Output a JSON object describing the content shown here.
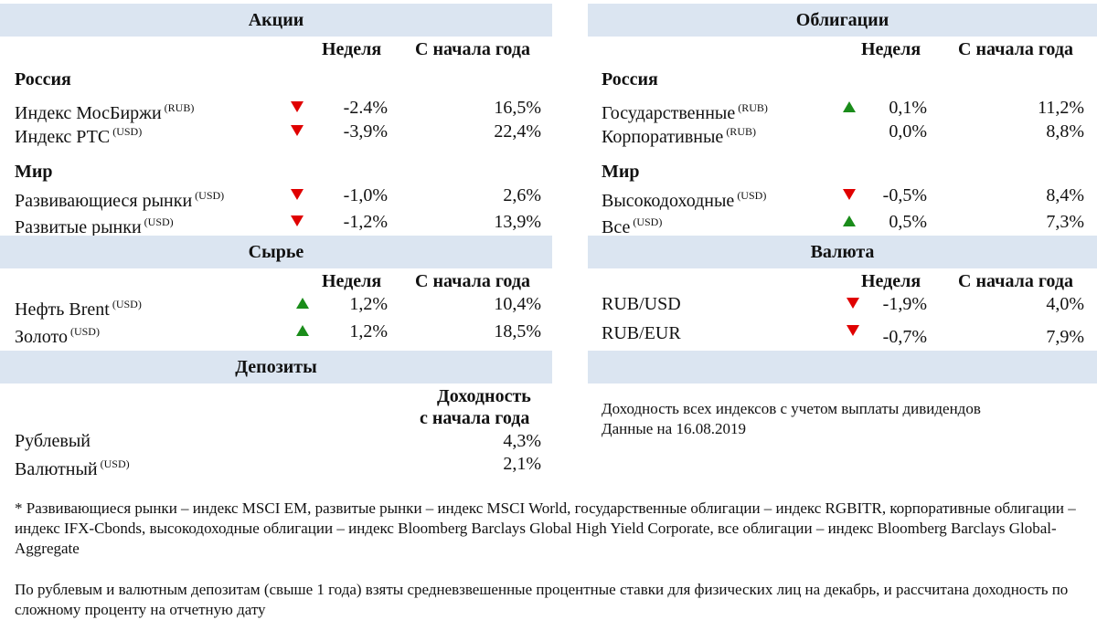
{
  "stocks": {
    "title": "Акции",
    "col_week": "Неделя",
    "col_ytd": "С начала года",
    "russia_label": "Россия",
    "world_label": "Мир",
    "russia": [
      {
        "name": "Индекс МосБиржи",
        "cur": "(RUB)",
        "dir": "down",
        "week": "-2.4%",
        "ytd": "16,5%"
      },
      {
        "name": "Индекс РТС",
        "cur": "(USD)",
        "dir": "down",
        "week": "-3,9%",
        "ytd": "22,4%"
      }
    ],
    "world": [
      {
        "name": "Развивающиеся рынки",
        "cur": "(USD)",
        "dir": "down",
        "week": "-1,0%",
        "ytd": "2,6%"
      },
      {
        "name": "Развитые рынки",
        "cur": "(USD)",
        "dir": "down",
        "week": "-1,2%",
        "ytd": "13,9%"
      }
    ]
  },
  "bonds": {
    "title": "Облигации",
    "col_week": "Неделя",
    "col_ytd": "С начала года",
    "russia_label": "Россия",
    "world_label": "Мир",
    "russia": [
      {
        "name": "Государственные",
        "cur": "(RUB)",
        "dir": "up",
        "week": "0,1%",
        "ytd": "11,2%"
      },
      {
        "name": "Корпоративные",
        "cur": "(RUB)",
        "dir": "none",
        "week": "0,0%",
        "ytd": "8,8%"
      }
    ],
    "world": [
      {
        "name": "Высокодоходные",
        "cur": "(USD)",
        "dir": "down",
        "week": "-0,5%",
        "ytd": "8,4%"
      },
      {
        "name": "Все",
        "cur": "(USD)",
        "dir": "up",
        "week": "0,5%",
        "ytd": "7,3%"
      }
    ]
  },
  "commodities": {
    "title": "Сырье",
    "col_week": "Неделя",
    "col_ytd": "С начала года",
    "rows": [
      {
        "name": "Нефть Brent",
        "cur": "(USD)",
        "dir": "up",
        "week": "1,2%",
        "ytd": "10,4%"
      },
      {
        "name": "Золото",
        "cur": "(USD)",
        "dir": "up",
        "week": "1,2%",
        "ytd": "18,5%"
      }
    ]
  },
  "currency": {
    "title": "Валюта",
    "col_week": "Неделя",
    "col_ytd": "С начала года",
    "rows": [
      {
        "name": "RUB/USD",
        "cur": "",
        "dir": "down",
        "week": "-1,9%",
        "ytd": "4,0%"
      },
      {
        "name": "RUB/EUR",
        "cur": "",
        "dir": "down",
        "week": "-0,7%",
        "ytd": "7,9%"
      }
    ]
  },
  "deposits": {
    "title": "Депозиты",
    "col_yield_line1": "Доходность",
    "col_yield_line2": "с начала года",
    "rows": [
      {
        "name": "Рублевый",
        "cur": "",
        "ytd": "4,3%"
      },
      {
        "name": "Валютный",
        "cur": "(USD)",
        "ytd": "2,1%"
      }
    ]
  },
  "notes": {
    "line1": "Доходность всех индексов с учетом выплаты дивидендов",
    "line2": "Данные на 16.08.2019"
  },
  "footnotes": {
    "indices": "* Развивающиеся рынки – индекс MSCI EM, развитые рынки – индекс MSCI World, государственные облигации – индекс RGBITR, корпоративные облигации – индекс IFX-Cbonds, высокодоходные облигации – индекс Bloomberg Barclays Global High Yield Corporate, все облигации – индекс Bloomberg Barclays Global-Aggregate",
    "deposits": "По рублевым и валютным депозитам (свыше 1 года) взяты средневзвешенные процентные ставки для физических лиц на декабрь, и рассчитана доходность по сложному проценту на отчетную дату"
  }
}
